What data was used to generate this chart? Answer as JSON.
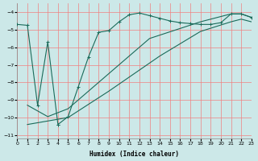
{
  "xlabel": "Humidex (Indice chaleur)",
  "background_color": "#cce8e8",
  "grid_color": "#f08080",
  "line_color": "#1a6b5a",
  "xlim": [
    0,
    23
  ],
  "ylim": [
    -11.2,
    -3.5
  ],
  "yticks": [
    -11,
    -10,
    -9,
    -8,
    -7,
    -6,
    -5,
    -4
  ],
  "xticks": [
    0,
    1,
    2,
    3,
    4,
    5,
    6,
    7,
    8,
    9,
    10,
    11,
    12,
    13,
    14,
    15,
    16,
    17,
    18,
    19,
    20,
    21,
    22,
    23
  ],
  "curve_zigzag_x": [
    0,
    1,
    2,
    3,
    4,
    4,
    5,
    6,
    7,
    8,
    9,
    10,
    11,
    12,
    13,
    14,
    15,
    16,
    17,
    18,
    19,
    20,
    21,
    22,
    23
  ],
  "curve_zigzag_y": [
    -4.7,
    -4.75,
    -9.3,
    -5.7,
    -10.4,
    -10.4,
    -9.95,
    -8.25,
    -6.55,
    -5.15,
    -5.05,
    -4.55,
    -4.15,
    -4.05,
    -4.2,
    -4.35,
    -4.5,
    -4.6,
    -4.65,
    -4.7,
    -4.7,
    -4.6,
    -4.1,
    -4.1,
    -4.3
  ],
  "curve_line1_x": [
    1,
    3,
    5,
    9,
    13,
    18,
    21,
    22,
    23
  ],
  "curve_line1_y": [
    -9.3,
    -9.95,
    -9.5,
    -7.5,
    -5.5,
    -4.55,
    -4.1,
    -4.1,
    -4.3
  ],
  "curve_line2_x": [
    1,
    5,
    9,
    14,
    18,
    21,
    22,
    23
  ],
  "curve_line2_y": [
    -10.4,
    -10.0,
    -8.5,
    -6.5,
    -5.1,
    -4.55,
    -4.4,
    -4.55
  ]
}
